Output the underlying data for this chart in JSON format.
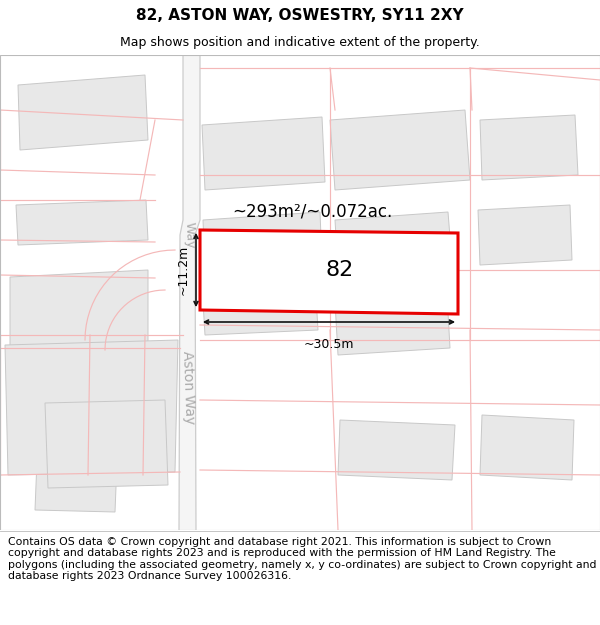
{
  "title": "82, ASTON WAY, OSWESTRY, SY11 2XY",
  "subtitle": "Map shows position and indicative extent of the property.",
  "footer": "Contains OS data © Crown copyright and database right 2021. This information is subject to Crown copyright and database rights 2023 and is reproduced with the permission of HM Land Registry. The polygons (including the associated geometry, namely x, y co-ordinates) are subject to Crown copyright and database rights 2023 Ordnance Survey 100026316.",
  "area_label": "~293m²/~0.072ac.",
  "width_label": "~30.5m",
  "height_label": "~11.2m",
  "plot_number": "82",
  "bg_color": "#ffffff",
  "road_fill": "#f5f5f5",
  "road_edge": "#cccccc",
  "plot_line_color": "#f4b8b8",
  "building_fill": "#e8e8e8",
  "building_edge": "#c8c8c8",
  "highlight_color": "#e60000",
  "dim_color": "#111111",
  "road_label_color": "#aaaaaa",
  "title_fontsize": 11,
  "subtitle_fontsize": 9,
  "footer_fontsize": 7.8,
  "area_fontsize": 12,
  "dim_fontsize": 9,
  "road_label_fontsize": 10,
  "plot_label_fontsize": 16
}
